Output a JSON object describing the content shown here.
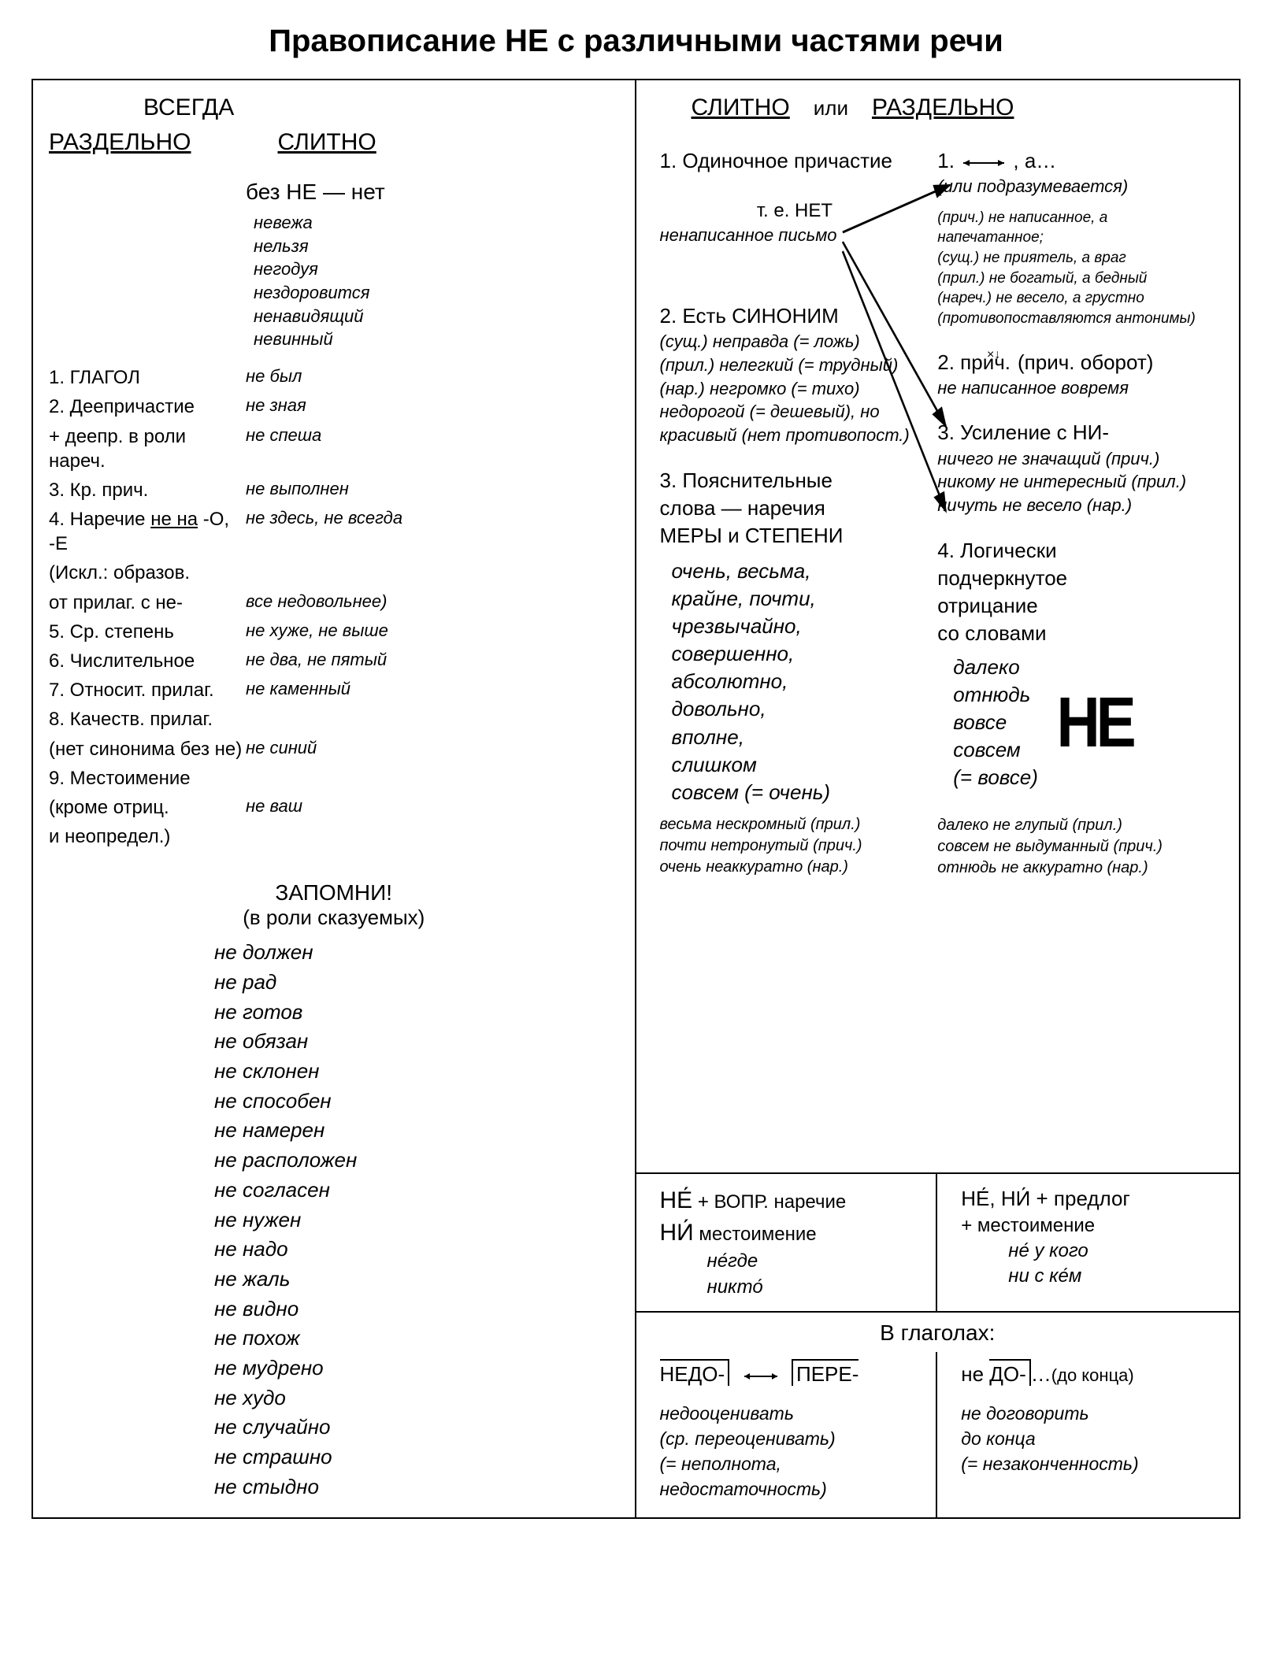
{
  "title": "Правописание НЕ с различными частями речи",
  "always": "ВСЕГДА",
  "left": {
    "header_sep": "РАЗДЕЛЬНО",
    "header_tog": "СЛИТНО",
    "bez_ne": "без НЕ — нет",
    "examples_top": [
      "невежа",
      "нельзя",
      "негодуя",
      "нездоровится",
      "ненавидящий",
      "невинный"
    ],
    "rows": [
      {
        "l": "1. ГЛАГОЛ",
        "e": "не был"
      },
      {
        "l": "2. Деепричастие",
        "e": "не зная"
      },
      {
        "l": "    + деепр. в роли нареч.",
        "e": "не спеша"
      },
      {
        "l": "3. Кр. прич.",
        "e": "не выполнен"
      },
      {
        "l": "4. Наречие <u>не на</u>  -О, -Е",
        "e": "не здесь, не всегда"
      },
      {
        "l": "    (Искл.: образов.",
        "e": ""
      },
      {
        "l": "    от прилаг. с не-",
        "e": "все недовольнее)"
      },
      {
        "l": "5. Ср. степень",
        "e": "не хуже, не выше"
      },
      {
        "l": "6. Числительное",
        "e": "не два, не пятый"
      },
      {
        "l": "7. Относит. прилаг.",
        "e": "не каменный"
      },
      {
        "l": "8. Качеств. прилаг.",
        "e": ""
      },
      {
        "l": "    (нет синонима без не)",
        "e": "не синий"
      },
      {
        "l": "9. Местоимение",
        "e": ""
      },
      {
        "l": "    (кроме отриц.",
        "e": "не ваш"
      },
      {
        "l": "    и неопредел.)",
        "e": ""
      }
    ],
    "remember_title": "ЗАПОМНИ!",
    "remember_sub": "(в роли сказуемых)",
    "remember_list": [
      "не должен",
      "не рад",
      "не готов",
      "не обязан",
      "не склонен",
      "не способен",
      "не намерен",
      "не расположен",
      "не согласен",
      "не нужен",
      "не надо",
      "не жаль",
      "не видно",
      "не похож",
      "не мудрено",
      "не худо",
      "не случайно",
      "не страшно",
      "не стыдно"
    ]
  },
  "right": {
    "header_tog": "СЛИТНО",
    "or": "или",
    "header_sep": "РАЗДЕЛЬНО",
    "left_col": {
      "i1_head": "1. Одиночное причастие",
      "i1_sub1": "т. е. НЕТ",
      "i1_sub2": "ненаписанное письмо",
      "i2_head": "2. Есть СИНОНИМ",
      "i2_lines": [
        "(сущ.) неправда (= ложь)",
        "(прил.) нелегкий (= трудный)",
        "(нар.) негромко (= тихо)",
        "недорогой (= дешевый), но",
        "красивый (нет противопост.)"
      ],
      "i3_head": "3. Пояснительные\n    слова — наречия\n    МЕРЫ и СТЕПЕНИ",
      "i3_words": "очень, весьма,\nкрайне, почти,\nчрезвычайно,\nсовершенно,\nабсолютно,\nдовольно,\nвполне,\nслишком\nсовсем (= очень)",
      "i3_ex": [
        "весьма нескромный (прил.)",
        "почти нетронутый (прич.)",
        "очень неаккуратно (нар.)"
      ]
    },
    "right_col": {
      "i1_head": "1. ←→ , а…",
      "i1_sub": "(или подразумевается)",
      "i1_ex": [
        "(прич.) не написанное, а напечатанное;",
        "(сущ.) не приятель, а враг",
        "(прил.) не богатый, а бедный",
        "(нареч.) не весело, а грустно",
        "(противопоставляются антонимы)"
      ],
      "i2_head": "2. прич.    (прич. оборот)",
      "i2_ex": "не написанное вовремя",
      "i3_head": "3. Усиление с НИ-",
      "i3_ex": [
        "ничего не значащий (прич.)",
        "никому не интересный (прил.)",
        "ничуть не весело (нар.)"
      ],
      "i4_head": "4. Логически\n    подчеркнутое\n    отрицание\n    со словами",
      "i4_words": [
        "далеко",
        "отнюдь",
        "вовсе",
        "совсем",
        "(= вовсе)"
      ],
      "i4_ex": [
        "далеко не глупый (прил.)",
        "совсем не выдуманный (прич.)",
        "отнюдь не аккуратно (нар.)"
      ],
      "big_ne": "НЕ"
    },
    "mid_left": {
      "line1a": "НЕ́",
      "line1b": "+  ВОПР. наречие",
      "line2a": "НИ́",
      "line2b": "    местоимение",
      "ex": [
        "не́где",
        "никто́"
      ]
    },
    "mid_right": {
      "line1": "НЕ́, НИ́ + предлог",
      "line2": "+ местоимение",
      "ex": [
        "не́ у кого",
        "ни с ке́м"
      ]
    },
    "verbs_title": "В глаголах:",
    "verb_left": {
      "head": "НЕДО-  ←→  ПЕРЕ-",
      "ex": [
        "недооценивать",
        "(ср. переоценивать)",
        "(= неполнота,",
        "недостаточность)"
      ]
    },
    "verb_right": {
      "head": "не ДО-…(до конца)",
      "ex": [
        "не договорить",
        "до конца",
        "(= незаконченность)"
      ]
    }
  }
}
